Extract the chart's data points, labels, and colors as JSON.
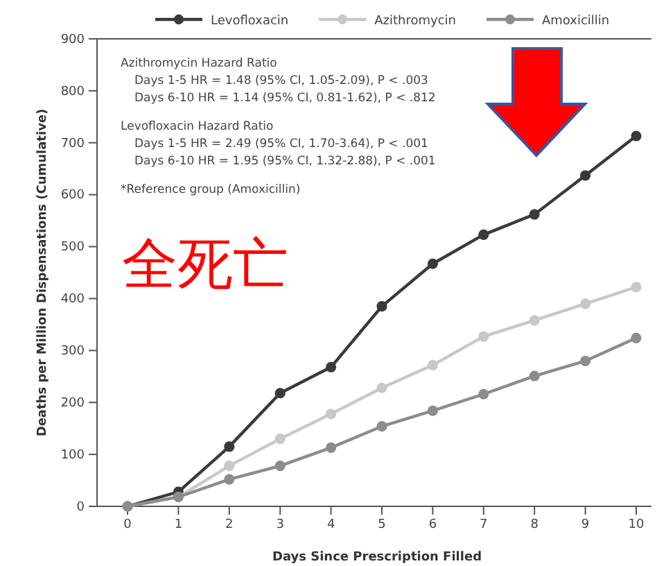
{
  "chart_data": {
    "type": "line",
    "xlabel": "Days Since Prescription Filled",
    "ylabel": "Deaths per Million Dispensations (Cumulative)",
    "x": [
      0,
      1,
      2,
      3,
      4,
      5,
      6,
      7,
      8,
      9,
      10
    ],
    "series": [
      {
        "name": "Levofloxacin",
        "color": "#3a3a3a",
        "values": [
          0,
          28,
          115,
          218,
          268,
          385,
          467,
          523,
          562,
          637,
          713
        ]
      },
      {
        "name": "Azithromycin",
        "color": "#c8c8c8",
        "values": [
          0,
          18,
          78,
          130,
          178,
          228,
          272,
          327,
          358,
          390,
          422
        ]
      },
      {
        "name": "Amoxicillin",
        "color": "#8c8c8c",
        "values": [
          0,
          18,
          52,
          78,
          113,
          154,
          184,
          216,
          251,
          280,
          324
        ]
      }
    ],
    "xlim": [
      -0.6,
      10.3
    ],
    "xticks": [
      0,
      1,
      2,
      3,
      4,
      5,
      6,
      7,
      8,
      9,
      10
    ],
    "ylim": [
      0,
      900
    ],
    "yticks": [
      0,
      100,
      200,
      300,
      400,
      500,
      600,
      700,
      800,
      900
    ],
    "grid": false,
    "legend": "top",
    "marker": "circle",
    "line_style": "solid",
    "annotations": [
      "Azithromycin Hazard Ratio",
      "Days 1-5 HR = 1.48 (95% CI, 1.05-2.09), P < .003",
      "Days 6-10 HR = 1.14 (95% CI, 0.81-1.62), P < .812",
      "Levofloxacin Hazard Ratio",
      "Days 1-5 HR = 2.49 (95% CI, 1.70-3.64), P < .001",
      "Days 6-10 HR = 1.95 (95% CI, 1.32-2.88), P < .001",
      "*Reference group (Amoxicillin)",
      "全死亡"
    ]
  }
}
